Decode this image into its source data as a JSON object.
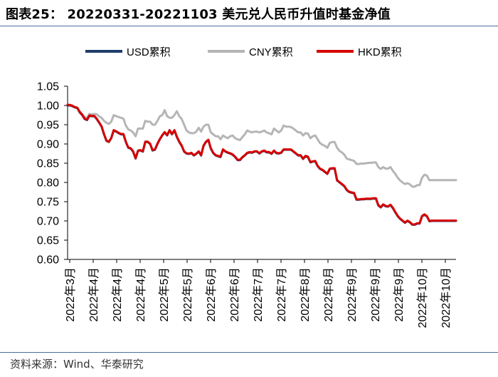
{
  "header": {
    "title": "图表25：  20220331-20221103 美元兑人民币升值时基金净值"
  },
  "footer": {
    "source": "资料来源：Wind、华泰研究"
  },
  "chart_data": {
    "type": "line",
    "title": "",
    "xlabel": "",
    "ylabel": "",
    "ylim": [
      0.6,
      1.05
    ],
    "yticks": [
      "1.05",
      "1.00",
      "0.95",
      "0.90",
      "0.85",
      "0.80",
      "0.75",
      "0.70",
      "0.65",
      "0.60"
    ],
    "x_tick_labels": [
      "2022年3月",
      "2022年4月",
      "2022年4月",
      "2022年4月",
      "2022年5月",
      "2022年5月",
      "2022年6月",
      "2022年6月",
      "2022年7月",
      "2022年7月",
      "2022年8月",
      "2022年8月",
      "2022年9月",
      "2022年9月",
      "2022年9月",
      "2022年10月",
      "2022年10月"
    ],
    "grid": false,
    "legend_position": "top",
    "x": [
      0,
      1,
      2,
      3,
      4,
      5,
      6,
      7,
      8,
      9,
      10,
      11,
      12,
      13,
      14,
      15,
      16,
      17,
      18,
      19,
      20,
      21,
      22,
      23,
      24,
      25,
      26,
      27,
      28,
      29,
      30,
      31,
      32,
      33,
      34,
      35,
      36,
      37,
      38,
      39,
      40,
      41,
      42,
      43,
      44,
      45,
      46,
      47,
      48,
      49,
      50,
      51,
      52,
      53,
      54,
      55,
      56,
      57,
      58,
      59,
      60,
      61,
      62,
      63,
      64,
      65,
      66,
      67,
      68,
      69,
      70,
      71,
      72,
      73,
      74,
      75,
      76,
      77,
      78,
      79,
      80,
      81,
      82,
      83,
      84,
      85,
      86,
      87,
      88,
      89,
      90,
      91,
      92,
      93,
      94,
      95,
      96,
      97,
      98,
      99,
      100,
      101,
      102,
      103,
      104,
      105,
      106,
      107,
      108,
      109,
      110,
      111,
      112,
      113,
      114,
      115,
      116,
      117,
      118,
      119,
      120,
      121,
      122,
      123,
      124,
      125,
      126,
      127,
      128,
      129,
      130,
      131,
      132,
      133,
      134,
      135,
      136,
      137,
      138,
      139,
      140,
      141,
      142,
      143,
      144,
      145,
      146,
      147,
      148,
      149,
      150,
      151,
      152,
      153,
      154,
      155,
      156,
      157,
      158,
      159,
      160
    ],
    "series": [
      {
        "name": "USD累积",
        "color": "#1f3d6b",
        "values": [
          1.0,
          1.0,
          0.998,
          0.995,
          0.993,
          0.982,
          0.975,
          0.965,
          0.962,
          0.973,
          0.972,
          0.972,
          0.965,
          0.955,
          0.945,
          0.925,
          0.908,
          0.905,
          0.915,
          0.935,
          0.932,
          0.928,
          0.925,
          0.925,
          0.905,
          0.89,
          0.888,
          0.88,
          0.862,
          0.882,
          0.883,
          0.88,
          0.905,
          0.905,
          0.9,
          0.883,
          0.885,
          0.9,
          0.912,
          0.922,
          0.93,
          0.922,
          0.935,
          0.925,
          0.935,
          0.918,
          0.905,
          0.895,
          0.88,
          0.875,
          0.874,
          0.876,
          0.87,
          0.874,
          0.88,
          0.87,
          0.895,
          0.905,
          0.91,
          0.888,
          0.876,
          0.87,
          0.868,
          0.866,
          0.885,
          0.88,
          0.877,
          0.875,
          0.872,
          0.866,
          0.858,
          0.858,
          0.865,
          0.87,
          0.876,
          0.878,
          0.877,
          0.88,
          0.88,
          0.875,
          0.88,
          0.882,
          0.878,
          0.878,
          0.874,
          0.882,
          0.876,
          0.875,
          0.877,
          0.885,
          0.885,
          0.885,
          0.885,
          0.88,
          0.875,
          0.87,
          0.87,
          0.861,
          0.868,
          0.866,
          0.852,
          0.854,
          0.855,
          0.842,
          0.835,
          0.832,
          0.827,
          0.822,
          0.835,
          0.836,
          0.836,
          0.805,
          0.8,
          0.795,
          0.79,
          0.78,
          0.775,
          0.773,
          0.772,
          0.755,
          0.755,
          0.756,
          0.756,
          0.757,
          0.757,
          0.757,
          0.758,
          0.758,
          0.74,
          0.735,
          0.742,
          0.738,
          0.737,
          0.741,
          0.733,
          0.722,
          0.712,
          0.705,
          0.7,
          0.695,
          0.7,
          0.696,
          0.69,
          0.69,
          0.693,
          0.693,
          0.712,
          0.716,
          0.712,
          0.699,
          0.7,
          0.7,
          0.7,
          0.7,
          0.7,
          0.7,
          0.7,
          0.7,
          0.7,
          0.7,
          0.7
        ]
      },
      {
        "name": "CNY累积",
        "color": "#b5b5b5",
        "values": [
          1.0,
          1.002,
          1.0,
          0.996,
          0.994,
          0.985,
          0.978,
          0.97,
          0.968,
          0.978,
          0.977,
          0.978,
          0.977,
          0.972,
          0.968,
          0.96,
          0.955,
          0.952,
          0.958,
          0.975,
          0.972,
          0.97,
          0.968,
          0.966,
          0.948,
          0.938,
          0.935,
          0.93,
          0.92,
          0.94,
          0.94,
          0.94,
          0.96,
          0.958,
          0.958,
          0.95,
          0.95,
          0.96,
          0.972,
          0.975,
          0.988,
          0.972,
          0.968,
          0.968,
          0.975,
          0.985,
          0.972,
          0.965,
          0.95,
          0.935,
          0.93,
          0.928,
          0.928,
          0.932,
          0.942,
          0.932,
          0.945,
          0.95,
          0.95,
          0.93,
          0.925,
          0.92,
          0.92,
          0.912,
          0.922,
          0.918,
          0.915,
          0.92,
          0.922,
          0.915,
          0.912,
          0.91,
          0.918,
          0.925,
          0.935,
          0.932,
          0.93,
          0.932,
          0.932,
          0.93,
          0.932,
          0.935,
          0.93,
          0.928,
          0.925,
          0.94,
          0.935,
          0.93,
          0.935,
          0.948,
          0.945,
          0.945,
          0.944,
          0.94,
          0.935,
          0.93,
          0.93,
          0.922,
          0.928,
          0.927,
          0.915,
          0.92,
          0.922,
          0.912,
          0.902,
          0.898,
          0.895,
          0.89,
          0.903,
          0.905,
          0.905,
          0.89,
          0.882,
          0.878,
          0.872,
          0.862,
          0.86,
          0.858,
          0.856,
          0.848,
          0.848,
          0.849,
          0.849,
          0.85,
          0.851,
          0.851,
          0.852,
          0.852,
          0.84,
          0.835,
          0.84,
          0.836,
          0.836,
          0.84,
          0.83,
          0.822,
          0.812,
          0.805,
          0.8,
          0.796,
          0.798,
          0.795,
          0.789,
          0.789,
          0.793,
          0.793,
          0.812,
          0.82,
          0.818,
          0.806,
          0.806,
          0.806,
          0.806,
          0.806,
          0.806,
          0.806,
          0.806,
          0.806,
          0.806,
          0.806,
          0.806
        ]
      },
      {
        "name": "HKD累积",
        "color": "#d60000",
        "values": [
          1.002,
          1.001,
          0.999,
          0.996,
          0.994,
          0.983,
          0.976,
          0.966,
          0.963,
          0.974,
          0.973,
          0.973,
          0.966,
          0.956,
          0.946,
          0.926,
          0.909,
          0.906,
          0.916,
          0.936,
          0.933,
          0.929,
          0.926,
          0.926,
          0.906,
          0.891,
          0.889,
          0.881,
          0.863,
          0.883,
          0.884,
          0.881,
          0.906,
          0.906,
          0.901,
          0.884,
          0.886,
          0.901,
          0.913,
          0.923,
          0.931,
          0.923,
          0.936,
          0.926,
          0.936,
          0.919,
          0.906,
          0.896,
          0.881,
          0.876,
          0.875,
          0.877,
          0.871,
          0.875,
          0.881,
          0.871,
          0.896,
          0.906,
          0.911,
          0.889,
          0.877,
          0.871,
          0.869,
          0.867,
          0.886,
          0.881,
          0.878,
          0.876,
          0.873,
          0.867,
          0.859,
          0.859,
          0.866,
          0.871,
          0.877,
          0.879,
          0.878,
          0.881,
          0.881,
          0.876,
          0.881,
          0.883,
          0.879,
          0.879,
          0.875,
          0.883,
          0.877,
          0.876,
          0.878,
          0.886,
          0.886,
          0.886,
          0.886,
          0.881,
          0.876,
          0.871,
          0.871,
          0.862,
          0.869,
          0.867,
          0.853,
          0.855,
          0.856,
          0.843,
          0.836,
          0.833,
          0.828,
          0.823,
          0.836,
          0.837,
          0.837,
          0.806,
          0.801,
          0.796,
          0.791,
          0.781,
          0.776,
          0.774,
          0.773,
          0.756,
          0.756,
          0.757,
          0.757,
          0.758,
          0.758,
          0.758,
          0.759,
          0.759,
          0.741,
          0.736,
          0.743,
          0.739,
          0.738,
          0.742,
          0.734,
          0.723,
          0.713,
          0.706,
          0.701,
          0.696,
          0.701,
          0.697,
          0.691,
          0.691,
          0.694,
          0.694,
          0.713,
          0.717,
          0.713,
          0.7,
          0.701,
          0.701,
          0.701,
          0.701,
          0.701,
          0.701,
          0.701,
          0.701,
          0.701,
          0.701,
          0.701
        ]
      }
    ]
  }
}
